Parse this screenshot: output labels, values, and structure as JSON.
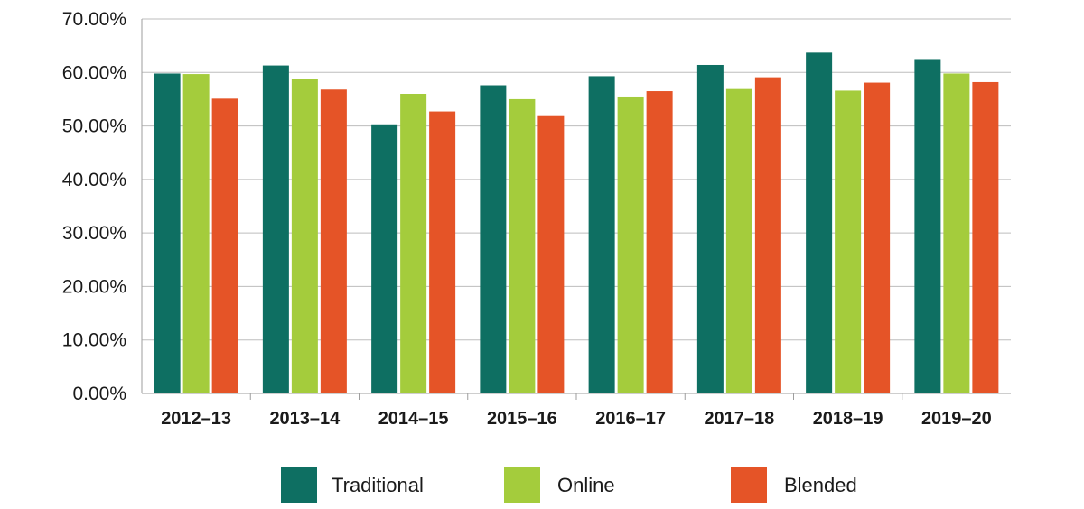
{
  "chart_data": {
    "type": "bar",
    "categories": [
      "2012–13",
      "2013–14",
      "2014–15",
      "2015–16",
      "2016–17",
      "2017–18",
      "2018–19",
      "2019–20"
    ],
    "series": [
      {
        "name": "Traditional",
        "color": "#0e6f62",
        "values": [
          59.8,
          61.3,
          50.3,
          57.6,
          59.3,
          61.4,
          63.7,
          62.5
        ]
      },
      {
        "name": "Online",
        "color": "#a4cc3c",
        "values": [
          59.7,
          58.8,
          56.0,
          55.0,
          55.5,
          56.9,
          56.6,
          59.8
        ]
      },
      {
        "name": "Blended",
        "color": "#e55427",
        "values": [
          55.1,
          56.8,
          52.7,
          52.0,
          56.5,
          59.1,
          58.1,
          58.2
        ]
      }
    ],
    "yticks": [
      "0.00%",
      "10.00%",
      "20.00%",
      "30.00%",
      "40.00%",
      "50.00%",
      "60.00%",
      "70.00%"
    ],
    "ylim": [
      0,
      70
    ],
    "grid": true,
    "legend_position": "bottom"
  }
}
